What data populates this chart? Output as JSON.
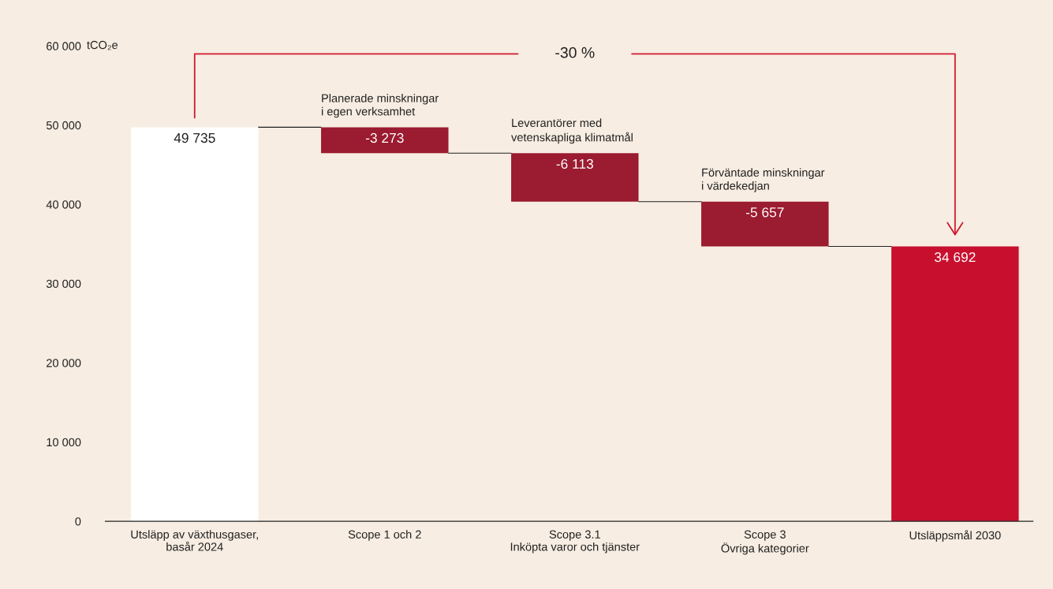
{
  "chart_data": {
    "type": "bar",
    "categories": [
      "Utsläpp av växthusgaser,\nbasår 2024",
      "Scope 1 och 2",
      "Scope 3.1\nInköpta varor och tjänster",
      "Scope 3\nÖvriga kategorier",
      "Utsläppsmål 2030"
    ],
    "values": [
      49735,
      -3273,
      -6113,
      -5657,
      34692
    ],
    "base": [
      0,
      49735,
      46462,
      40349,
      0
    ],
    "colors": [
      "#ffffff",
      "#9b1b30",
      "#9b1b30",
      "#9b1b30",
      "#c8102e"
    ],
    "value_labels": [
      "49 735",
      "-3 273",
      "-6 113",
      "-5 657",
      "34 692"
    ],
    "ylabel": "tCO₂e",
    "ylim": [
      0,
      60000
    ],
    "yticks": [
      {
        "value": 0,
        "label": "0"
      },
      {
        "value": 10000,
        "label": "10 000"
      },
      {
        "value": 20000,
        "label": "20 000"
      },
      {
        "value": 30000,
        "label": "30 000"
      },
      {
        "value": 40000,
        "label": "40 000"
      },
      {
        "value": 50000,
        "label": "50 000"
      },
      {
        "value": 60000,
        "label": "60 000"
      }
    ],
    "grid": false,
    "annotations": [
      "-30 %",
      {
        "text": "Planerade minskningar\ni egen verksamhet",
        "x": "Scope 1 och 2",
        "y": 49735
      },
      {
        "text": "Leverantörer med\nvetenskapliga klimatmål",
        "x": "Scope 3.1\nInköpta varor och tjänster",
        "y": 46462
      },
      {
        "text": "Förväntade minskningar\ni värdekedjan",
        "x": "Scope 3\nÖvriga kategorier",
        "y": 40349
      }
    ]
  }
}
